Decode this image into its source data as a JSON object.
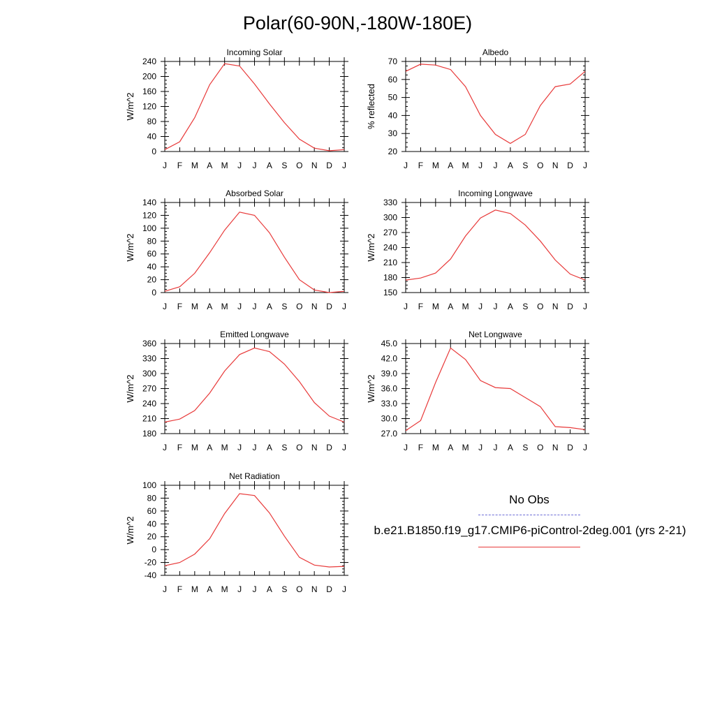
{
  "page_title": "Polar(60-90N,-180W-180E)",
  "legend": {
    "obs_label": "No Obs",
    "model_label": "b.e21.B1850.f19_g17.CMIP6-piControl-2deg.001 (yrs 2-21)",
    "obs_color": "#6b6bd6",
    "model_color": "#e83a3a"
  },
  "chart_data": [
    {
      "type": "line",
      "title": "Incoming Solar",
      "ylabel": "W/m^2",
      "categories": [
        "J",
        "F",
        "M",
        "A",
        "M",
        "J",
        "J",
        "A",
        "S",
        "O",
        "N",
        "D",
        "J"
      ],
      "ylim": [
        0,
        240
      ],
      "yticks": [
        "0",
        "40",
        "80",
        "120",
        "160",
        "200",
        "240"
      ],
      "series": [
        {
          "name": "b.e21.B1850.f19_g17.CMIP6-piControl-2deg.001 (yrs 2-21)",
          "values": [
            5,
            26,
            90,
            178,
            234,
            228,
            180,
            127,
            77,
            33,
            9,
            2,
            5
          ]
        }
      ]
    },
    {
      "type": "line",
      "title": "Albedo",
      "ylabel": "% reflected",
      "categories": [
        "J",
        "F",
        "M",
        "A",
        "M",
        "J",
        "J",
        "A",
        "S",
        "O",
        "N",
        "D",
        "J"
      ],
      "ylim": [
        20,
        70
      ],
      "yticks": [
        "20",
        "30",
        "40",
        "50",
        "60",
        "70"
      ],
      "series": [
        {
          "name": "b.e21.B1850.f19_g17.CMIP6-piControl-2deg.001 (yrs 2-21)",
          "values": [
            64.5,
            68.5,
            68,
            65.5,
            56,
            40,
            29.5,
            24.5,
            29.5,
            45.5,
            56,
            57.5,
            64.5
          ]
        }
      ]
    },
    {
      "type": "line",
      "title": "Absorbed Solar",
      "ylabel": "W/m^2",
      "categories": [
        "J",
        "F",
        "M",
        "A",
        "M",
        "J",
        "J",
        "A",
        "S",
        "O",
        "N",
        "D",
        "J"
      ],
      "ylim": [
        0,
        140
      ],
      "yticks": [
        "0",
        "20",
        "40",
        "60",
        "80",
        "100",
        "120",
        "140"
      ],
      "series": [
        {
          "name": "b.e21.B1850.f19_g17.CMIP6-piControl-2deg.001 (yrs 2-21)",
          "values": [
            2,
            9,
            30,
            62,
            97,
            125,
            120,
            93,
            55,
            20,
            4,
            0,
            2
          ]
        }
      ]
    },
    {
      "type": "line",
      "title": "Incoming Longwave",
      "ylabel": "W/m^2",
      "categories": [
        "J",
        "F",
        "M",
        "A",
        "M",
        "J",
        "J",
        "A",
        "S",
        "O",
        "N",
        "D",
        "J"
      ],
      "ylim": [
        150,
        330
      ],
      "yticks": [
        "150",
        "180",
        "210",
        "240",
        "270",
        "300",
        "330"
      ],
      "series": [
        {
          "name": "b.e21.B1850.f19_g17.CMIP6-piControl-2deg.001 (yrs 2-21)",
          "values": [
            175,
            179,
            189,
            217,
            263,
            299,
            315,
            308,
            285,
            253,
            215,
            187,
            175
          ]
        }
      ]
    },
    {
      "type": "line",
      "title": "Emitted Longwave",
      "ylabel": "W/m^2",
      "categories": [
        "J",
        "F",
        "M",
        "A",
        "M",
        "J",
        "J",
        "A",
        "S",
        "O",
        "N",
        "D",
        "J"
      ],
      "ylim": [
        180,
        360
      ],
      "yticks": [
        "180",
        "210",
        "240",
        "270",
        "300",
        "330",
        "360"
      ],
      "series": [
        {
          "name": "b.e21.B1850.f19_g17.CMIP6-piControl-2deg.001 (yrs 2-21)",
          "values": [
            203,
            209,
            226,
            261,
            305,
            338,
            351,
            344,
            319,
            284,
            242,
            215,
            203
          ]
        }
      ]
    },
    {
      "type": "line",
      "title": "Net Longwave",
      "ylabel": "W/m^2",
      "categories": [
        "J",
        "F",
        "M",
        "A",
        "M",
        "J",
        "J",
        "A",
        "S",
        "O",
        "N",
        "D",
        "J"
      ],
      "ylim": [
        27,
        45
      ],
      "yticks": [
        "27.0",
        "30.0",
        "33.0",
        "36.0",
        "39.0",
        "42.0",
        "45.0"
      ],
      "series": [
        {
          "name": "b.e21.B1850.f19_g17.CMIP6-piControl-2deg.001 (yrs 2-21)",
          "values": [
            27.6,
            29.6,
            37.2,
            44.1,
            41.8,
            37.6,
            36.2,
            36.0,
            34.2,
            32.4,
            28.4,
            28.2,
            27.8
          ]
        }
      ]
    },
    {
      "type": "line",
      "title": "Net Radiation",
      "ylabel": "W/m^2",
      "categories": [
        "J",
        "F",
        "M",
        "A",
        "M",
        "J",
        "J",
        "A",
        "S",
        "O",
        "N",
        "D",
        "J"
      ],
      "ylim": [
        -40,
        100
      ],
      "yticks": [
        "-40",
        "-20",
        "0",
        "20",
        "40",
        "60",
        "80",
        "100"
      ],
      "series": [
        {
          "name": "b.e21.B1850.f19_g17.CMIP6-piControl-2deg.001 (yrs 2-21)",
          "values": [
            -25,
            -20,
            -7,
            17,
            56,
            87,
            84,
            57,
            21,
            -12,
            -24,
            -27,
            -26
          ]
        }
      ]
    }
  ]
}
